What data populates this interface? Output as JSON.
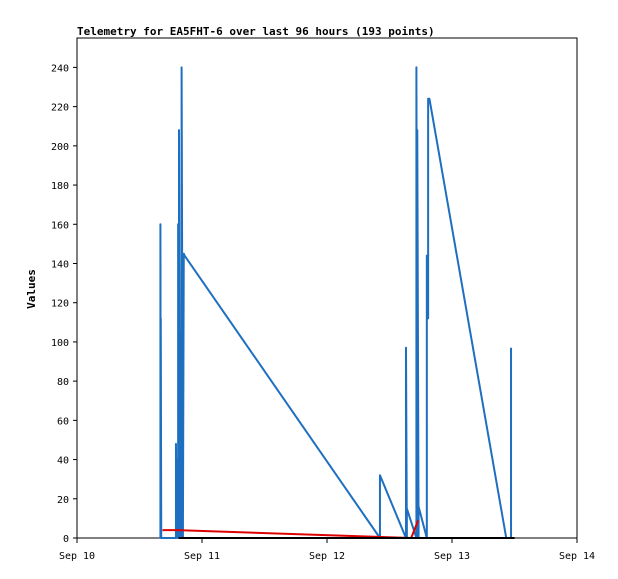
{
  "chart_data": {
    "type": "line",
    "title": "Telemetry for EA5FHT-6 over last 96 hours (193 points)",
    "xlabel": "",
    "ylabel": "Values",
    "xlim": [
      "2025-09-10 00:00",
      "2025-09-14 00:00"
    ],
    "ylim": [
      0,
      255
    ],
    "x_ticks": [
      "Sep 10",
      "Sep 11",
      "Sep 12",
      "Sep 13",
      "Sep 14"
    ],
    "y_ticks": [
      0,
      20,
      40,
      60,
      80,
      100,
      120,
      140,
      160,
      180,
      200,
      220,
      240
    ],
    "grid": false,
    "legend": "none",
    "series": [
      {
        "color": "#1f6fc0",
        "x": [
          "2025-09-10 16:01",
          "2025-09-10 16:01",
          "2025-09-10 16:05",
          "2025-09-10 16:05",
          "2025-09-10 16:10",
          "2025-09-10 16:10",
          "2025-09-10 19:00",
          "2025-09-10 19:00",
          "2025-09-10 19:05",
          "2025-09-10 19:05",
          "2025-09-10 19:25",
          "2025-09-10 19:25",
          "2025-09-10 19:35",
          "2025-09-10 19:35",
          "2025-09-10 19:48",
          "2025-09-10 19:48",
          "2025-09-10 20:05",
          "2025-09-10 20:05",
          "2025-09-10 20:15",
          "2025-09-10 20:20",
          "2025-09-10 20:20",
          "2025-09-10 20:30",
          "2025-09-10 20:40",
          "2025-09-12 10:10",
          "2025-09-12 10:10",
          "2025-09-12 15:10",
          "2025-09-12 15:10",
          "2025-09-12 15:20",
          "2025-09-12 15:20",
          "2025-09-12 17:10",
          "2025-09-12 17:10",
          "2025-09-12 17:20",
          "2025-09-12 17:20",
          "2025-09-12 17:35",
          "2025-09-12 17:35",
          "2025-09-12 19:10",
          "2025-09-12 19:10",
          "2025-09-12 19:25",
          "2025-09-12 19:25",
          "2025-09-12 19:40",
          "2025-09-13 10:25",
          "2025-09-13 10:25",
          "2025-09-13 11:20",
          "2025-09-13 11:20"
        ],
        "y": [
          0,
          160,
          0,
          112,
          8,
          0,
          0,
          48,
          0,
          40,
          0,
          160,
          0,
          208,
          0,
          104,
          0,
          240,
          80,
          144,
          0,
          145,
          144,
          0,
          32,
          0,
          97,
          0,
          15,
          0,
          240,
          0,
          208,
          0,
          16,
          0,
          144,
          112,
          224,
          224,
          0,
          0,
          0,
          97
        ]
      },
      {
        "color": "#dd0000",
        "x": [
          "2025-09-10 16:25",
          "2025-09-10 19:15",
          "2025-09-12 16:10",
          "2025-09-12 17:30"
        ],
        "y": [
          4,
          4,
          0,
          9
        ]
      },
      {
        "color": "#000000",
        "x": [
          "2025-09-10 19:30",
          "2025-09-13 12:00"
        ],
        "y": [
          0,
          0
        ]
      }
    ]
  }
}
